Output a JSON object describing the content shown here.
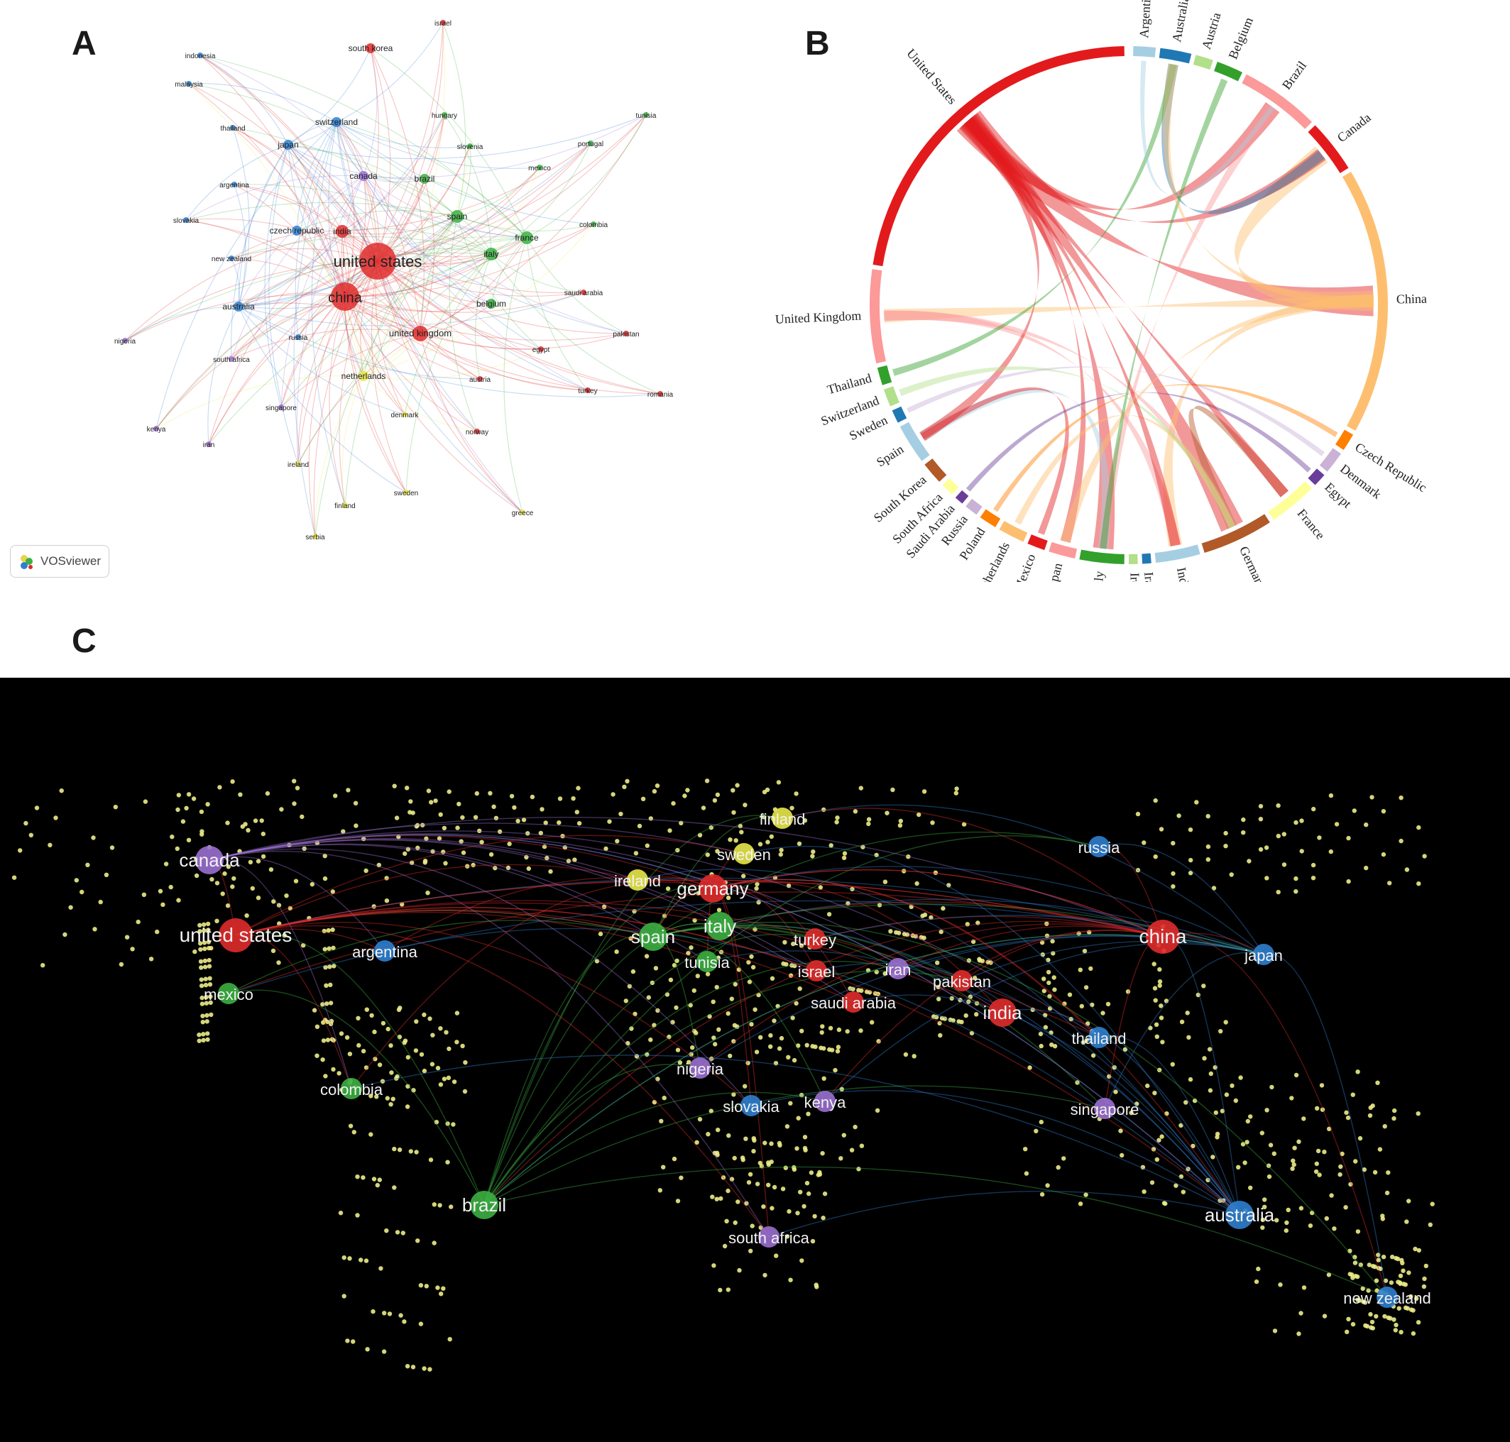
{
  "panels": {
    "a": "A",
    "b": "B",
    "c": "C"
  },
  "brand": {
    "label": "VOSviewer",
    "icon": "vosviewer-logo-icon"
  },
  "colors": {
    "red": "#e02b2b",
    "blue": "#2f7fcf",
    "green": "#3cb043",
    "purple": "#9a6fd0",
    "yellow": "#e8e84a",
    "dot": "#ecec88"
  },
  "network": {
    "nodes": [
      {
        "label": "united states",
        "cluster": "red",
        "weight": 10
      },
      {
        "label": "china",
        "cluster": "red",
        "weight": 8
      },
      {
        "label": "united kingdom",
        "cluster": "red",
        "weight": 4
      },
      {
        "label": "india",
        "cluster": "red",
        "weight": 3
      },
      {
        "label": "south korea",
        "cluster": "red",
        "weight": 2
      },
      {
        "label": "israel",
        "cluster": "red",
        "weight": 1
      },
      {
        "label": "saudi arabia",
        "cluster": "red",
        "weight": 1
      },
      {
        "label": "pakistan",
        "cluster": "red",
        "weight": 1
      },
      {
        "label": "egypt",
        "cluster": "red",
        "weight": 1
      },
      {
        "label": "austria",
        "cluster": "red",
        "weight": 1
      },
      {
        "label": "turkey",
        "cluster": "red",
        "weight": 1
      },
      {
        "label": "norway",
        "cluster": "red",
        "weight": 1
      },
      {
        "label": "romania",
        "cluster": "red",
        "weight": 1
      },
      {
        "label": "indonesia",
        "cluster": "blue",
        "weight": 1
      },
      {
        "label": "malaysia",
        "cluster": "blue",
        "weight": 1
      },
      {
        "label": "thailand",
        "cluster": "blue",
        "weight": 1
      },
      {
        "label": "switzerland",
        "cluster": "blue",
        "weight": 2
      },
      {
        "label": "japan",
        "cluster": "blue",
        "weight": 2
      },
      {
        "label": "argentina",
        "cluster": "blue",
        "weight": 1
      },
      {
        "label": "slovakia",
        "cluster": "blue",
        "weight": 1
      },
      {
        "label": "czech republic",
        "cluster": "blue",
        "weight": 2
      },
      {
        "label": "new zealand",
        "cluster": "blue",
        "weight": 1
      },
      {
        "label": "australia",
        "cluster": "blue",
        "weight": 2
      },
      {
        "label": "russia",
        "cluster": "blue",
        "weight": 1
      },
      {
        "label": "hungary",
        "cluster": "green",
        "weight": 1
      },
      {
        "label": "tunisia",
        "cluster": "green",
        "weight": 1
      },
      {
        "label": "slovenia",
        "cluster": "green",
        "weight": 1
      },
      {
        "label": "portugal",
        "cluster": "green",
        "weight": 1
      },
      {
        "label": "brazil",
        "cluster": "green",
        "weight": 2
      },
      {
        "label": "mexico",
        "cluster": "green",
        "weight": 1
      },
      {
        "label": "spain",
        "cluster": "green",
        "weight": 3
      },
      {
        "label": "france",
        "cluster": "green",
        "weight": 3
      },
      {
        "label": "colombia",
        "cluster": "green",
        "weight": 1
      },
      {
        "label": "italy",
        "cluster": "green",
        "weight": 3
      },
      {
        "label": "belgium",
        "cluster": "green",
        "weight": 2
      },
      {
        "label": "canada",
        "cluster": "purple",
        "weight": 2
      },
      {
        "label": "nigeria",
        "cluster": "purple",
        "weight": 1
      },
      {
        "label": "south africa",
        "cluster": "purple",
        "weight": 1
      },
      {
        "label": "kenya",
        "cluster": "purple",
        "weight": 1
      },
      {
        "label": "iran",
        "cluster": "purple",
        "weight": 1
      },
      {
        "label": "singapore",
        "cluster": "purple",
        "weight": 1
      },
      {
        "label": "netherlands",
        "cluster": "yellow",
        "weight": 2
      },
      {
        "label": "denmark",
        "cluster": "yellow",
        "weight": 1
      },
      {
        "label": "ireland",
        "cluster": "yellow",
        "weight": 1
      },
      {
        "label": "finland",
        "cluster": "yellow",
        "weight": 1
      },
      {
        "label": "sweden",
        "cluster": "yellow",
        "weight": 1
      },
      {
        "label": "greece",
        "cluster": "yellow",
        "weight": 1
      },
      {
        "label": "serbia",
        "cluster": "yellow",
        "weight": 1
      }
    ]
  },
  "chord": {
    "sectors": [
      {
        "label": "Argentina",
        "color": "#a6cee3"
      },
      {
        "label": "Australia",
        "color": "#1f78b4"
      },
      {
        "label": "Austria",
        "color": "#b2df8a"
      },
      {
        "label": "Belgium",
        "color": "#33a02c"
      },
      {
        "label": "Brazil",
        "color": "#fb9a99"
      },
      {
        "label": "Canada",
        "color": "#e31a1c"
      },
      {
        "label": "China",
        "color": "#fdbf6f"
      },
      {
        "label": "Czech Republic",
        "color": "#ff7f00"
      },
      {
        "label": "Denmark",
        "color": "#cab2d6"
      },
      {
        "label": "Egypt",
        "color": "#6a3d9a"
      },
      {
        "label": "France",
        "color": "#ffff99"
      },
      {
        "label": "Germany",
        "color": "#b15928"
      },
      {
        "label": "India",
        "color": "#a6cee3"
      },
      {
        "label": "Iran",
        "color": "#1f78b4"
      },
      {
        "label": "Ireland",
        "color": "#b2df8a"
      },
      {
        "label": "Italy",
        "color": "#33a02c"
      },
      {
        "label": "Japan",
        "color": "#fb9a99"
      },
      {
        "label": "Mexico",
        "color": "#e31a1c"
      },
      {
        "label": "Netherlands",
        "color": "#fdbf6f"
      },
      {
        "label": "Poland",
        "color": "#ff7f00"
      },
      {
        "label": "Russia",
        "color": "#cab2d6"
      },
      {
        "label": "Saudi Arabia",
        "color": "#6a3d9a"
      },
      {
        "label": "South Africa",
        "color": "#ffff99"
      },
      {
        "label": "South Korea",
        "color": "#b15928"
      },
      {
        "label": "Spain",
        "color": "#a6cee3"
      },
      {
        "label": "Sweden",
        "color": "#1f78b4"
      },
      {
        "label": "Switzerland",
        "color": "#b2df8a"
      },
      {
        "label": "Thailand",
        "color": "#33a02c"
      },
      {
        "label": "United Kingdom",
        "color": "#fb9a99"
      },
      {
        "label": "United States",
        "color": "#e31a1c"
      }
    ]
  },
  "map": {
    "nodes": [
      {
        "label": "canada",
        "cluster": "purple"
      },
      {
        "label": "united states",
        "cluster": "red"
      },
      {
        "label": "argentina",
        "cluster": "blue"
      },
      {
        "label": "mexico",
        "cluster": "green"
      },
      {
        "label": "colombia",
        "cluster": "green"
      },
      {
        "label": "brazil",
        "cluster": "green"
      },
      {
        "label": "ireland",
        "cluster": "yellow"
      },
      {
        "label": "finland",
        "cluster": "yellow"
      },
      {
        "label": "sweden",
        "cluster": "yellow"
      },
      {
        "label": "germany",
        "cluster": "red"
      },
      {
        "label": "spain",
        "cluster": "green"
      },
      {
        "label": "italy",
        "cluster": "green"
      },
      {
        "label": "tunisia",
        "cluster": "green"
      },
      {
        "label": "turkey",
        "cluster": "red"
      },
      {
        "label": "israel",
        "cluster": "red"
      },
      {
        "label": "iran",
        "cluster": "purple"
      },
      {
        "label": "saudi arabia",
        "cluster": "red"
      },
      {
        "label": "pakistan",
        "cluster": "red"
      },
      {
        "label": "india",
        "cluster": "red"
      },
      {
        "label": "nigeria",
        "cluster": "purple"
      },
      {
        "label": "slovakia",
        "cluster": "blue"
      },
      {
        "label": "kenya",
        "cluster": "purple"
      },
      {
        "label": "south africa",
        "cluster": "purple"
      },
      {
        "label": "russia",
        "cluster": "blue"
      },
      {
        "label": "china",
        "cluster": "red"
      },
      {
        "label": "japan",
        "cluster": "blue"
      },
      {
        "label": "thailand",
        "cluster": "blue"
      },
      {
        "label": "singapore",
        "cluster": "purple"
      },
      {
        "label": "australia",
        "cluster": "blue"
      },
      {
        "label": "new zealand",
        "cluster": "blue"
      }
    ]
  }
}
